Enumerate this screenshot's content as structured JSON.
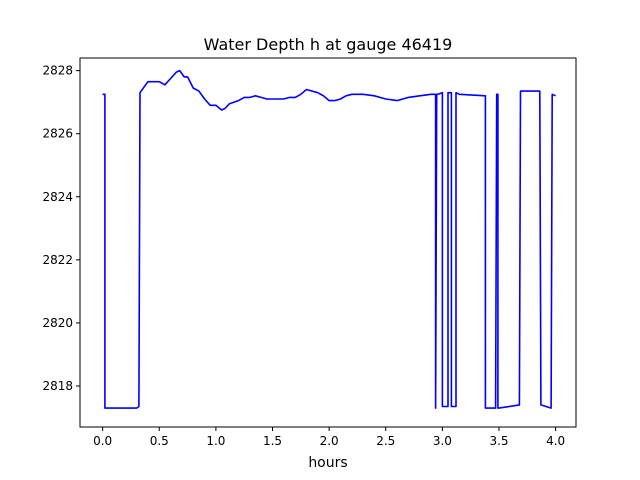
{
  "chart_data": {
    "type": "line",
    "title": "Water Depth h at gauge 46419",
    "xlabel": "hours",
    "ylabel": "",
    "xlim": [
      -0.2,
      4.18
    ],
    "ylim": [
      2816.7,
      2828.4
    ],
    "xticks": [
      0.0,
      0.5,
      1.0,
      1.5,
      2.0,
      2.5,
      3.0,
      3.5,
      4.0
    ],
    "xtick_labels": [
      "0.0",
      "0.5",
      "1.0",
      "1.5",
      "2.0",
      "2.5",
      "3.0",
      "3.5",
      "4.0"
    ],
    "yticks": [
      2818,
      2820,
      2822,
      2824,
      2826,
      2828
    ],
    "ytick_labels": [
      "2818",
      "2820",
      "2822",
      "2824",
      "2826",
      "2828"
    ],
    "grid": false,
    "legend": "none",
    "series": [
      {
        "color": "#0000ff",
        "x": [
          0.0,
          0.02,
          0.02,
          0.3,
          0.32,
          0.33,
          0.4,
          0.5,
          0.55,
          0.6,
          0.65,
          0.68,
          0.72,
          0.75,
          0.8,
          0.85,
          0.9,
          0.95,
          1.0,
          1.05,
          1.08,
          1.12,
          1.2,
          1.25,
          1.3,
          1.35,
          1.4,
          1.45,
          1.5,
          1.55,
          1.6,
          1.65,
          1.7,
          1.75,
          1.8,
          1.85,
          1.9,
          1.95,
          2.0,
          2.05,
          2.1,
          2.15,
          2.2,
          2.3,
          2.4,
          2.5,
          2.6,
          2.7,
          2.8,
          2.9,
          2.94,
          2.94,
          2.95,
          2.96,
          3.0,
          3.0,
          3.05,
          3.05,
          3.08,
          3.08,
          3.12,
          3.12,
          3.15,
          3.38,
          3.38,
          3.47,
          3.48,
          3.49,
          3.49,
          3.5,
          3.68,
          3.69,
          3.86,
          3.87,
          3.96,
          3.97,
          4.0
        ],
        "y": [
          2827.25,
          2827.25,
          2817.3,
          2817.3,
          2817.35,
          2827.3,
          2827.65,
          2827.65,
          2827.55,
          2827.75,
          2827.95,
          2828.0,
          2827.8,
          2827.8,
          2827.45,
          2827.35,
          2827.1,
          2826.9,
          2826.9,
          2826.75,
          2826.8,
          2826.95,
          2827.05,
          2827.15,
          2827.15,
          2827.2,
          2827.15,
          2827.1,
          2827.1,
          2827.1,
          2827.1,
          2827.15,
          2827.15,
          2827.25,
          2827.4,
          2827.35,
          2827.3,
          2827.2,
          2827.05,
          2827.05,
          2827.1,
          2827.2,
          2827.25,
          2827.25,
          2827.2,
          2827.1,
          2827.05,
          2827.15,
          2827.2,
          2827.25,
          2827.25,
          2817.3,
          2827.25,
          2827.25,
          2827.3,
          2817.35,
          2817.35,
          2827.3,
          2827.3,
          2817.35,
          2817.35,
          2827.3,
          2827.25,
          2827.2,
          2817.3,
          2817.3,
          2827.25,
          2827.25,
          2817.3,
          2817.3,
          2817.4,
          2827.35,
          2827.35,
          2817.4,
          2817.3,
          2827.25,
          2827.2
        ]
      }
    ]
  }
}
